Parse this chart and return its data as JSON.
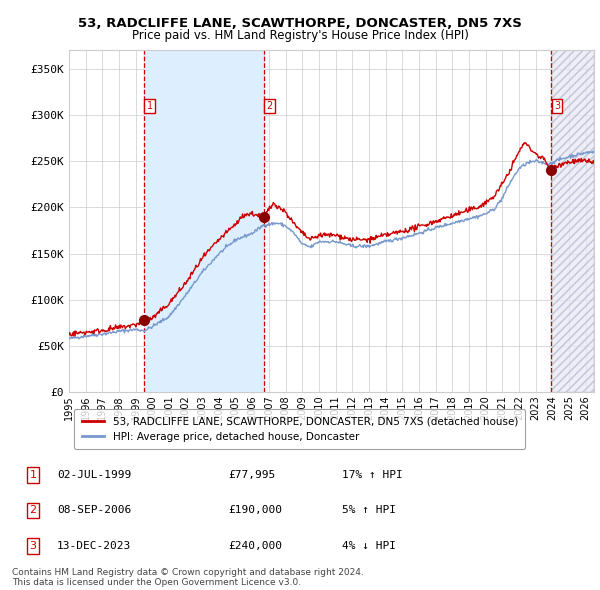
{
  "title": "53, RADCLIFFE LANE, SCAWTHORPE, DONCASTER, DN5 7XS",
  "subtitle": "Price paid vs. HM Land Registry's House Price Index (HPI)",
  "xlim_start": 1995.0,
  "xlim_end": 2026.5,
  "ylim_min": 0,
  "ylim_max": 370000,
  "yticks": [
    0,
    50000,
    100000,
    150000,
    200000,
    250000,
    300000,
    350000
  ],
  "ytick_labels": [
    "£0",
    "£50K",
    "£100K",
    "£150K",
    "£200K",
    "£250K",
    "£300K",
    "£350K"
  ],
  "xticks": [
    1995,
    1996,
    1997,
    1998,
    1999,
    2000,
    2001,
    2002,
    2003,
    2004,
    2005,
    2006,
    2007,
    2008,
    2009,
    2010,
    2011,
    2012,
    2013,
    2014,
    2015,
    2016,
    2017,
    2018,
    2019,
    2020,
    2021,
    2022,
    2023,
    2024,
    2025,
    2026
  ],
  "sale_dates": [
    1999.5,
    2006.69,
    2023.95
  ],
  "sale_prices": [
    77995,
    190000,
    240000
  ],
  "sale_labels": [
    "1",
    "2",
    "3"
  ],
  "sale_info": [
    {
      "label": "1",
      "date": "02-JUL-1999",
      "price": "£77,995",
      "hpi": "17% ↑ HPI"
    },
    {
      "label": "2",
      "date": "08-SEP-2006",
      "price": "£190,000",
      "hpi": "5% ↑ HPI"
    },
    {
      "label": "3",
      "date": "13-DEC-2023",
      "price": "£240,000",
      "hpi": "4% ↓ HPI"
    }
  ],
  "legend_line1": "53, RADCLIFFE LANE, SCAWTHORPE, DONCASTER, DN5 7XS (detached house)",
  "legend_line2": "HPI: Average price, detached house, Doncaster",
  "legend_color1": "#cc0000",
  "legend_color2": "#7799cc",
  "footer": "Contains HM Land Registry data © Crown copyright and database right 2024.\nThis data is licensed under the Open Government Licence v3.0.",
  "bg_color": "#ffffff",
  "grid_color": "#cccccc",
  "hpi_line_color": "#7799cc",
  "sale_line_color": "#cc0000",
  "shaded_region_color": "#ddeeff",
  "hatch_color": "#e8e8f4"
}
